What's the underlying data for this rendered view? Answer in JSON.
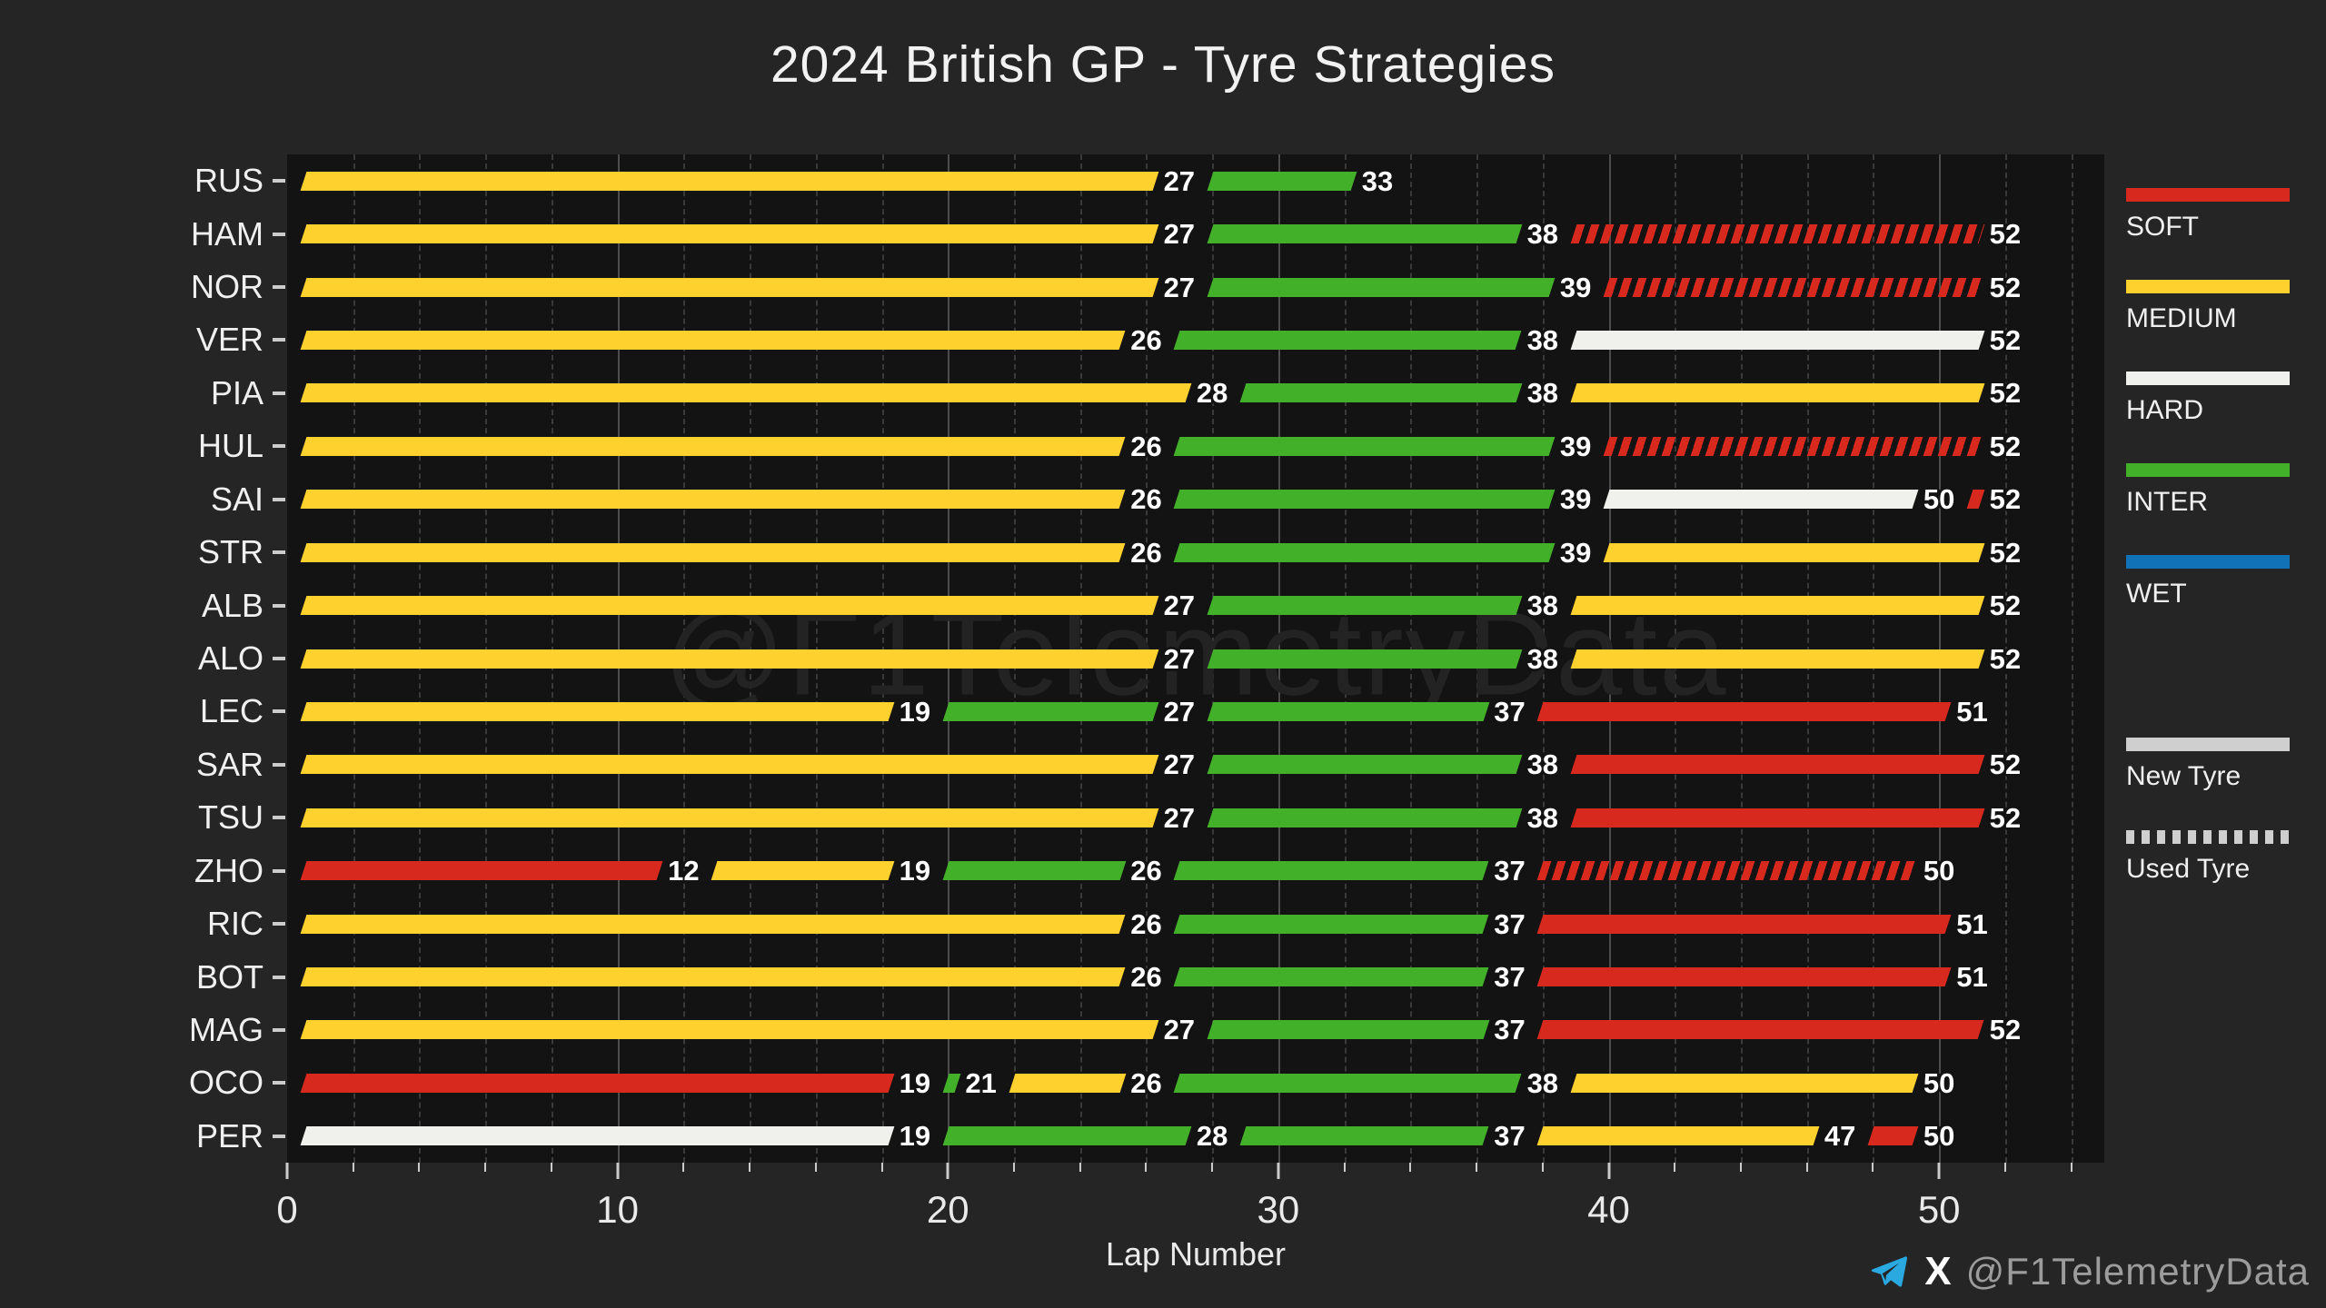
{
  "title": "2024 British GP - Tyre Strategies",
  "watermark": "@F1TelemetryData",
  "footer": {
    "handle": "@F1TelemetryData",
    "icons": [
      "telegram-icon",
      "x-icon"
    ]
  },
  "chart_data": {
    "type": "bar",
    "subtype": "horizontal-gantt-tyre-strategy",
    "title": "2024 British GP - Tyre Strategies",
    "xlabel": "Lap Number",
    "ylabel": "",
    "xlim": [
      0,
      55
    ],
    "x_major_ticks": [
      0,
      10,
      20,
      30,
      40,
      50
    ],
    "x_minor_tick_step": 2,
    "grid": "vertical: dashed minor every 2 laps, solid major every 10 laps",
    "legend_position": "right",
    "colors": {
      "SOFT": "#d7291d",
      "MEDIUM": "#ffd12e",
      "HARD": "#f0f0ec",
      "INTER": "#43b02a",
      "WET": "#1272b8",
      "legend_neutral": "#cfcfcf",
      "background": "#252525",
      "plot_background": "#131313"
    },
    "legend_compounds": [
      "SOFT",
      "MEDIUM",
      "HARD",
      "INTER",
      "WET"
    ],
    "usage_legend": [
      {
        "label": "New Tyre",
        "style": "solid"
      },
      {
        "label": "Used Tyre",
        "style": "dashed"
      }
    ],
    "drivers": [
      {
        "code": "RUS",
        "stints": [
          {
            "compound": "MEDIUM",
            "start": 0,
            "end": 27,
            "used": false
          },
          {
            "compound": "INTER",
            "start": 27,
            "end": 33,
            "used": false
          }
        ]
      },
      {
        "code": "HAM",
        "stints": [
          {
            "compound": "MEDIUM",
            "start": 0,
            "end": 27,
            "used": false
          },
          {
            "compound": "INTER",
            "start": 27,
            "end": 38,
            "used": false
          },
          {
            "compound": "SOFT",
            "start": 38,
            "end": 52,
            "used": true
          }
        ]
      },
      {
        "code": "NOR",
        "stints": [
          {
            "compound": "MEDIUM",
            "start": 0,
            "end": 27,
            "used": false
          },
          {
            "compound": "INTER",
            "start": 27,
            "end": 39,
            "used": false
          },
          {
            "compound": "SOFT",
            "start": 39,
            "end": 52,
            "used": true
          }
        ]
      },
      {
        "code": "VER",
        "stints": [
          {
            "compound": "MEDIUM",
            "start": 0,
            "end": 26,
            "used": false
          },
          {
            "compound": "INTER",
            "start": 26,
            "end": 38,
            "used": false
          },
          {
            "compound": "HARD",
            "start": 38,
            "end": 52,
            "used": false
          }
        ]
      },
      {
        "code": "PIA",
        "stints": [
          {
            "compound": "MEDIUM",
            "start": 0,
            "end": 28,
            "used": false
          },
          {
            "compound": "INTER",
            "start": 28,
            "end": 38,
            "used": false
          },
          {
            "compound": "MEDIUM",
            "start": 38,
            "end": 52,
            "used": false
          }
        ]
      },
      {
        "code": "HUL",
        "stints": [
          {
            "compound": "MEDIUM",
            "start": 0,
            "end": 26,
            "used": false
          },
          {
            "compound": "INTER",
            "start": 26,
            "end": 39,
            "used": false
          },
          {
            "compound": "SOFT",
            "start": 39,
            "end": 52,
            "used": true
          }
        ]
      },
      {
        "code": "SAI",
        "stints": [
          {
            "compound": "MEDIUM",
            "start": 0,
            "end": 26,
            "used": false
          },
          {
            "compound": "INTER",
            "start": 26,
            "end": 39,
            "used": false
          },
          {
            "compound": "HARD",
            "start": 39,
            "end": 50,
            "used": false
          },
          {
            "compound": "SOFT",
            "start": 50,
            "end": 52,
            "used": false
          }
        ]
      },
      {
        "code": "STR",
        "stints": [
          {
            "compound": "MEDIUM",
            "start": 0,
            "end": 26,
            "used": false
          },
          {
            "compound": "INTER",
            "start": 26,
            "end": 39,
            "used": false
          },
          {
            "compound": "MEDIUM",
            "start": 39,
            "end": 52,
            "used": false
          }
        ]
      },
      {
        "code": "ALB",
        "stints": [
          {
            "compound": "MEDIUM",
            "start": 0,
            "end": 27,
            "used": false
          },
          {
            "compound": "INTER",
            "start": 27,
            "end": 38,
            "used": false
          },
          {
            "compound": "MEDIUM",
            "start": 38,
            "end": 52,
            "used": false
          }
        ]
      },
      {
        "code": "ALO",
        "stints": [
          {
            "compound": "MEDIUM",
            "start": 0,
            "end": 27,
            "used": false
          },
          {
            "compound": "INTER",
            "start": 27,
            "end": 38,
            "used": false
          },
          {
            "compound": "MEDIUM",
            "start": 38,
            "end": 52,
            "used": false
          }
        ]
      },
      {
        "code": "LEC",
        "stints": [
          {
            "compound": "MEDIUM",
            "start": 0,
            "end": 19,
            "used": false
          },
          {
            "compound": "INTER",
            "start": 19,
            "end": 27,
            "used": false
          },
          {
            "compound": "INTER",
            "start": 27,
            "end": 37,
            "used": false
          },
          {
            "compound": "SOFT",
            "start": 37,
            "end": 51,
            "used": false
          }
        ]
      },
      {
        "code": "SAR",
        "stints": [
          {
            "compound": "MEDIUM",
            "start": 0,
            "end": 27,
            "used": false
          },
          {
            "compound": "INTER",
            "start": 27,
            "end": 38,
            "used": false
          },
          {
            "compound": "SOFT",
            "start": 38,
            "end": 52,
            "used": false
          }
        ]
      },
      {
        "code": "TSU",
        "stints": [
          {
            "compound": "MEDIUM",
            "start": 0,
            "end": 27,
            "used": false
          },
          {
            "compound": "INTER",
            "start": 27,
            "end": 38,
            "used": false
          },
          {
            "compound": "SOFT",
            "start": 38,
            "end": 52,
            "used": false
          }
        ]
      },
      {
        "code": "ZHO",
        "stints": [
          {
            "compound": "SOFT",
            "start": 0,
            "end": 12,
            "used": false
          },
          {
            "compound": "MEDIUM",
            "start": 12,
            "end": 19,
            "used": false
          },
          {
            "compound": "INTER",
            "start": 19,
            "end": 26,
            "used": false
          },
          {
            "compound": "INTER",
            "start": 26,
            "end": 37,
            "used": false
          },
          {
            "compound": "SOFT",
            "start": 37,
            "end": 50,
            "used": true
          }
        ]
      },
      {
        "code": "RIC",
        "stints": [
          {
            "compound": "MEDIUM",
            "start": 0,
            "end": 26,
            "used": false
          },
          {
            "compound": "INTER",
            "start": 26,
            "end": 37,
            "used": false
          },
          {
            "compound": "SOFT",
            "start": 37,
            "end": 51,
            "used": false
          }
        ]
      },
      {
        "code": "BOT",
        "stints": [
          {
            "compound": "MEDIUM",
            "start": 0,
            "end": 26,
            "used": false
          },
          {
            "compound": "INTER",
            "start": 26,
            "end": 37,
            "used": false
          },
          {
            "compound": "SOFT",
            "start": 37,
            "end": 51,
            "used": false
          }
        ]
      },
      {
        "code": "MAG",
        "stints": [
          {
            "compound": "MEDIUM",
            "start": 0,
            "end": 27,
            "used": false
          },
          {
            "compound": "INTER",
            "start": 27,
            "end": 37,
            "used": false
          },
          {
            "compound": "SOFT",
            "start": 37,
            "end": 52,
            "used": false
          }
        ]
      },
      {
        "code": "OCO",
        "stints": [
          {
            "compound": "SOFT",
            "start": 0,
            "end": 19,
            "used": false
          },
          {
            "compound": "INTER",
            "start": 19,
            "end": 21,
            "used": false
          },
          {
            "compound": "MEDIUM",
            "start": 21,
            "end": 26,
            "used": false
          },
          {
            "compound": "INTER",
            "start": 26,
            "end": 38,
            "used": false
          },
          {
            "compound": "MEDIUM",
            "start": 38,
            "end": 50,
            "used": false
          }
        ]
      },
      {
        "code": "PER",
        "stints": [
          {
            "compound": "HARD",
            "start": 0,
            "end": 19,
            "used": false
          },
          {
            "compound": "INTER",
            "start": 19,
            "end": 28,
            "used": false
          },
          {
            "compound": "INTER",
            "start": 28,
            "end": 37,
            "used": false
          },
          {
            "compound": "MEDIUM",
            "start": 37,
            "end": 47,
            "used": false
          },
          {
            "compound": "SOFT",
            "start": 47,
            "end": 50,
            "used": false
          }
        ]
      }
    ]
  }
}
